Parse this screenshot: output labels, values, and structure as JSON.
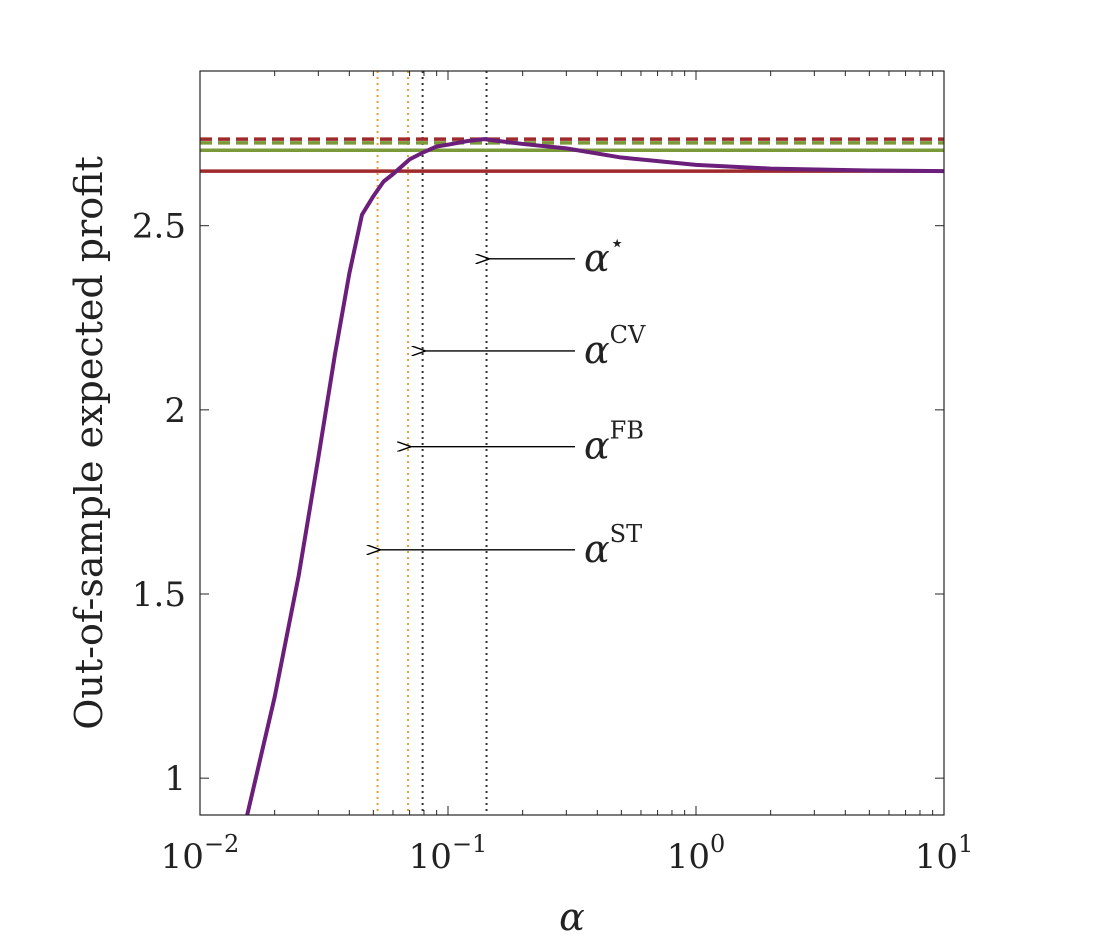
{
  "chart_data": {
    "type": "line",
    "xscale": "log",
    "xlim": [
      0.01,
      10
    ],
    "ylim": [
      0.9,
      2.92
    ],
    "xlabel": "α",
    "ylabel": "Out-of-sample expected profit",
    "xticks": [
      {
        "value": 0.01,
        "base": "10",
        "exp": "−2"
      },
      {
        "value": 0.1,
        "base": "10",
        "exp": "−1"
      },
      {
        "value": 1,
        "base": "10",
        "exp": "0"
      },
      {
        "value": 10,
        "base": "10",
        "exp": "1"
      }
    ],
    "yticks": [
      {
        "value": 1,
        "label": "1"
      },
      {
        "value": 1.5,
        "label": "1.5"
      },
      {
        "value": 2,
        "label": "2"
      },
      {
        "value": 2.5,
        "label": "2.5"
      }
    ],
    "series": [
      {
        "name": "profit-curve",
        "color": "#6b1f7a",
        "x": [
          0.0155,
          0.02,
          0.025,
          0.03,
          0.035,
          0.04,
          0.045,
          0.05,
          0.055,
          0.06,
          0.07,
          0.08,
          0.09,
          0.1,
          0.12,
          0.14,
          0.16,
          0.2,
          0.3,
          0.5,
          1,
          2,
          5,
          10
        ],
        "y": [
          0.9,
          1.22,
          1.55,
          1.87,
          2.15,
          2.37,
          2.53,
          2.58,
          2.62,
          2.64,
          2.68,
          2.7,
          2.715,
          2.72,
          2.73,
          2.735,
          2.73,
          2.722,
          2.71,
          2.685,
          2.665,
          2.655,
          2.65,
          2.648
        ]
      }
    ],
    "hlines": [
      {
        "name": "dashed-red",
        "y": 2.735,
        "color": "#9e2a2b",
        "style": "dashed"
      },
      {
        "name": "dashed-green",
        "y": 2.725,
        "color": "#7a9a3a",
        "style": "dashed"
      },
      {
        "name": "solid-green",
        "y": 2.705,
        "color": "#7a9a3a",
        "style": "solid"
      },
      {
        "name": "solid-red",
        "y": 2.648,
        "color": "#9e2a2b",
        "style": "solid"
      }
    ],
    "vlines": [
      {
        "name": "alpha-st",
        "x": 0.052,
        "color": "#e8a13a"
      },
      {
        "name": "alpha-fb",
        "x": 0.069,
        "color": "#e8a13a"
      },
      {
        "name": "alpha-cv",
        "x": 0.079,
        "color": "#333333"
      },
      {
        "name": "alpha-star",
        "x": 0.143,
        "color": "#333333"
      }
    ],
    "annotations": [
      {
        "name": "alpha-star",
        "base": "α",
        "sup": "⋆",
        "target_x": 0.143,
        "y": 2.41
      },
      {
        "name": "alpha-cv",
        "base": "α",
        "sup": "CV",
        "target_x": 0.079,
        "y": 2.16
      },
      {
        "name": "alpha-fb",
        "base": "α",
        "sup": "FB",
        "target_x": 0.069,
        "y": 1.9
      },
      {
        "name": "alpha-st",
        "base": "α",
        "sup": "ST",
        "target_x": 0.052,
        "y": 1.62
      }
    ]
  }
}
